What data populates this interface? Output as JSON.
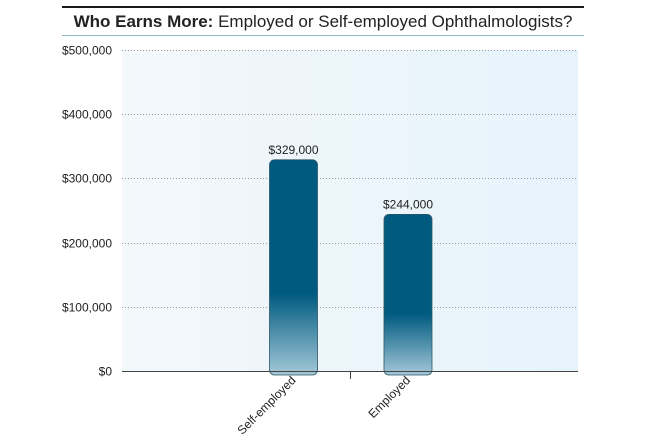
{
  "chart_data": {
    "type": "bar",
    "title_bold": "Who Earns More:",
    "title_rest": " Employed or Self-employed Ophthalmologists?",
    "categories": [
      "Self-employed",
      "Employed"
    ],
    "values": [
      329000,
      244000
    ],
    "value_labels": [
      "$329,000",
      "$244,000"
    ],
    "yticks": [
      0,
      100000,
      200000,
      300000,
      400000,
      500000
    ],
    "ytick_labels": [
      "$0",
      "$100,000",
      "$200,000",
      "$300,000",
      "$400,000",
      "$500,000"
    ],
    "ylim": [
      0,
      500000
    ],
    "xlabel": "",
    "ylabel": "",
    "grid": true,
    "colors": {
      "bar_dark": "#005a7f",
      "bar_light": "#9cc3d4",
      "plot_bg": "#eef6fb",
      "grid": "#9a9a9a"
    }
  }
}
